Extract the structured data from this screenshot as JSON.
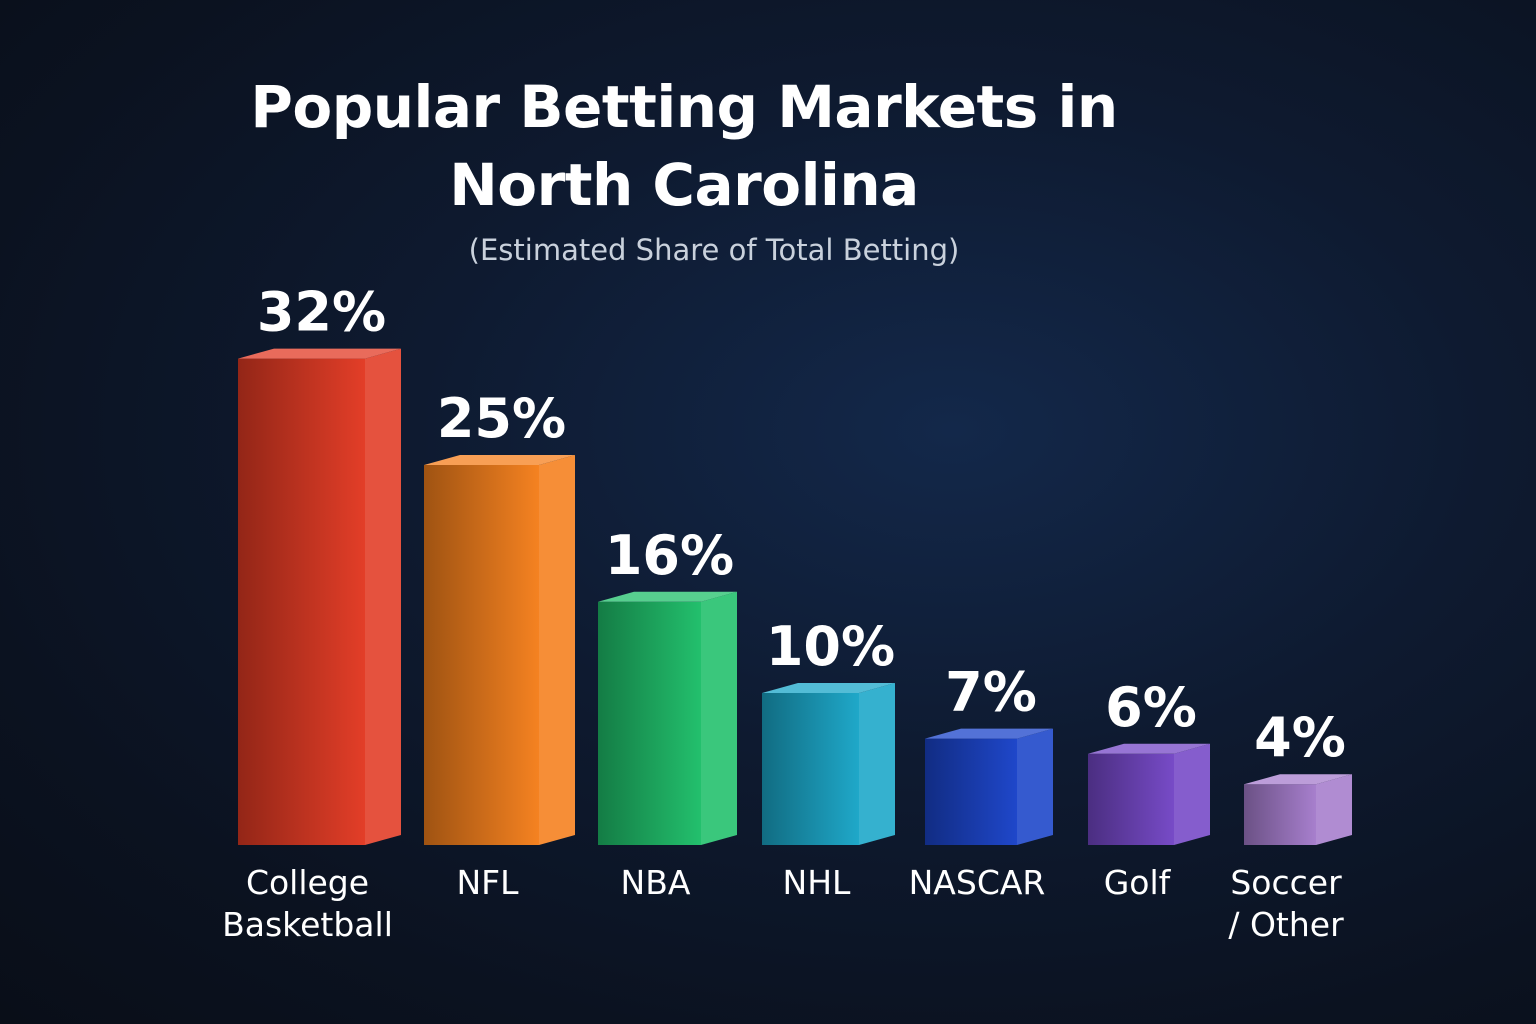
{
  "chart_data": {
    "type": "bar",
    "title_lines": [
      "Popular Betting Markets in",
      "North Carolina"
    ],
    "subtitle": "(Estimated Share of Total Betting)",
    "categories": [
      "College Basketball",
      "NFL",
      "NBA",
      "NHL",
      "NASCAR",
      "Golf",
      "Soccer / Other"
    ],
    "category_lines": [
      [
        "College",
        "Basketball"
      ],
      [
        "NFL"
      ],
      [
        "NBA"
      ],
      [
        "NHL"
      ],
      [
        "NASCAR"
      ],
      [
        "Golf"
      ],
      [
        "Soccer",
        "/ Other"
      ]
    ],
    "values": [
      32,
      25,
      16,
      10,
      7,
      6,
      4
    ],
    "value_labels": [
      "32%",
      "25%",
      "16%",
      "10%",
      "7%",
      "6%",
      "4%"
    ],
    "colors": [
      "#e23a24",
      "#f57f1c",
      "#1fbf6a",
      "#1aa6c8",
      "#1a43c9",
      "#7447c6",
      "#a57ccc"
    ],
    "unit": "%",
    "grid": false,
    "legend": "none"
  }
}
